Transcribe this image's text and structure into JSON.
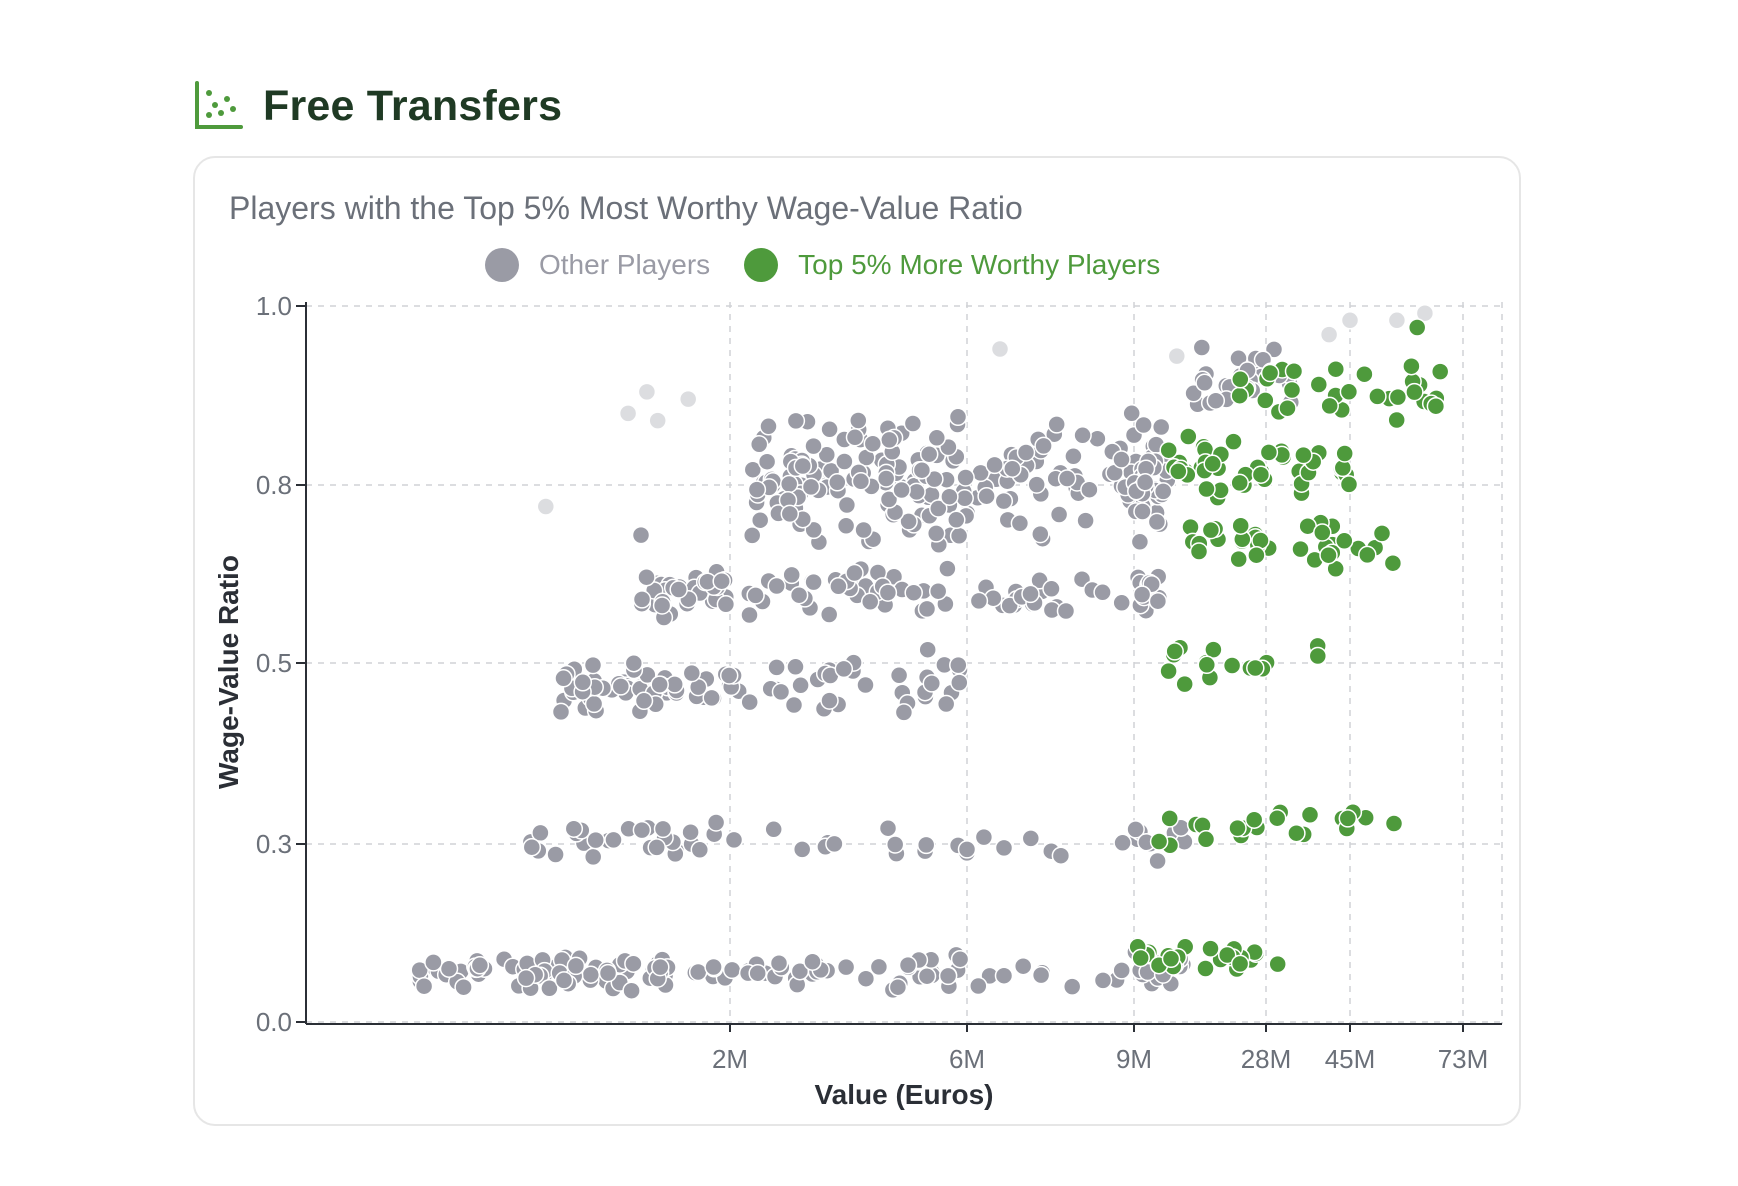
{
  "page": {
    "title": "Free Transfers",
    "icon": "scatter-chart-icon"
  },
  "card": {
    "title": "Players with the Top 5% Most Worthy Wage-Value Ratio"
  },
  "colors": {
    "other": "#9a9ba5",
    "top": "#4e9a3c",
    "faded": "#dcdde0",
    "title": "#1f3a24"
  },
  "chart_data": {
    "type": "scatter",
    "title": "Players with the Top 5% Most Worthy Wage-Value Ratio",
    "xlabel": "Value (Euros)",
    "ylabel": "Wage-Value Ratio",
    "x_scale": "log",
    "x_ticks": [
      "2M",
      "6M",
      "9M",
      "28M",
      "45M",
      "73M"
    ],
    "y_ticks": [
      "0.0",
      "0.3",
      "0.5",
      "0.8",
      "1.0"
    ],
    "ylim": [
      0,
      1.0
    ],
    "grid": true,
    "legend": {
      "position": "top-center",
      "entries": [
        "Other Players",
        "Top 5% More Worthy Players"
      ]
    },
    "series": [
      {
        "name": "Other Players",
        "color": "#9a9ba5",
        "clusters": [
          {
            "x_range": [
              0.08,
              14
            ],
            "y_center": 0.07,
            "y_spread": 0.03,
            "count": 150
          },
          {
            "x_range": [
              0.25,
              14
            ],
            "y_center": 0.25,
            "y_spread": 0.03,
            "count": 60
          },
          {
            "x_range": [
              0.35,
              7
            ],
            "y_center": 0.47,
            "y_spread": 0.04,
            "count": 90
          },
          {
            "x_range": [
              0.8,
              12
            ],
            "y_center": 0.6,
            "y_spread": 0.04,
            "count": 110
          },
          {
            "x_range": [
              2.2,
              12
            ],
            "y_center": 0.76,
            "y_spread": 0.1,
            "count": 230
          },
          {
            "x_range": [
              15,
              35
            ],
            "y_center": 0.9,
            "y_spread": 0.05,
            "count": 30
          }
        ],
        "outliers": [
          {
            "x": 0.4,
            "y": 0.27
          },
          {
            "x": 0.36,
            "y": 0.48
          },
          {
            "x": 0.8,
            "y": 0.68
          },
          {
            "x": 5.0,
            "y": 0.52
          }
        ]
      },
      {
        "name": "Top 5% More Worthy Players",
        "color": "#4e9a3c",
        "clusters": [
          {
            "x_range": [
              9,
              30
            ],
            "y_center": 0.09,
            "y_spread": 0.02,
            "count": 25
          },
          {
            "x_range": [
              11,
              70
            ],
            "y_center": 0.27,
            "y_spread": 0.03,
            "count": 22
          },
          {
            "x_range": [
              11,
              40
            ],
            "y_center": 0.5,
            "y_spread": 0.03,
            "count": 16
          },
          {
            "x_range": [
              14,
              55
            ],
            "y_center": 0.67,
            "y_spread": 0.04,
            "count": 35
          },
          {
            "x_range": [
              12,
              45
            ],
            "y_center": 0.77,
            "y_spread": 0.05,
            "count": 45
          },
          {
            "x_range": [
              20,
              70
            ],
            "y_center": 0.88,
            "y_spread": 0.05,
            "count": 30
          }
        ],
        "outliers": [
          {
            "x": 60,
            "y": 0.97
          },
          {
            "x": 65,
            "y": 0.86
          }
        ]
      },
      {
        "name": "Faded points",
        "color": "#dcdde0",
        "points": [
          {
            "x": 0.3,
            "y": 0.72
          },
          {
            "x": 0.7,
            "y": 0.85
          },
          {
            "x": 0.85,
            "y": 0.88
          },
          {
            "x": 0.95,
            "y": 0.84
          },
          {
            "x": 1.3,
            "y": 0.87
          },
          {
            "x": 6.5,
            "y": 0.94
          },
          {
            "x": 13,
            "y": 0.93
          },
          {
            "x": 40,
            "y": 0.96
          },
          {
            "x": 45,
            "y": 0.98
          },
          {
            "x": 55,
            "y": 0.98
          },
          {
            "x": 62,
            "y": 0.99
          }
        ]
      }
    ]
  }
}
